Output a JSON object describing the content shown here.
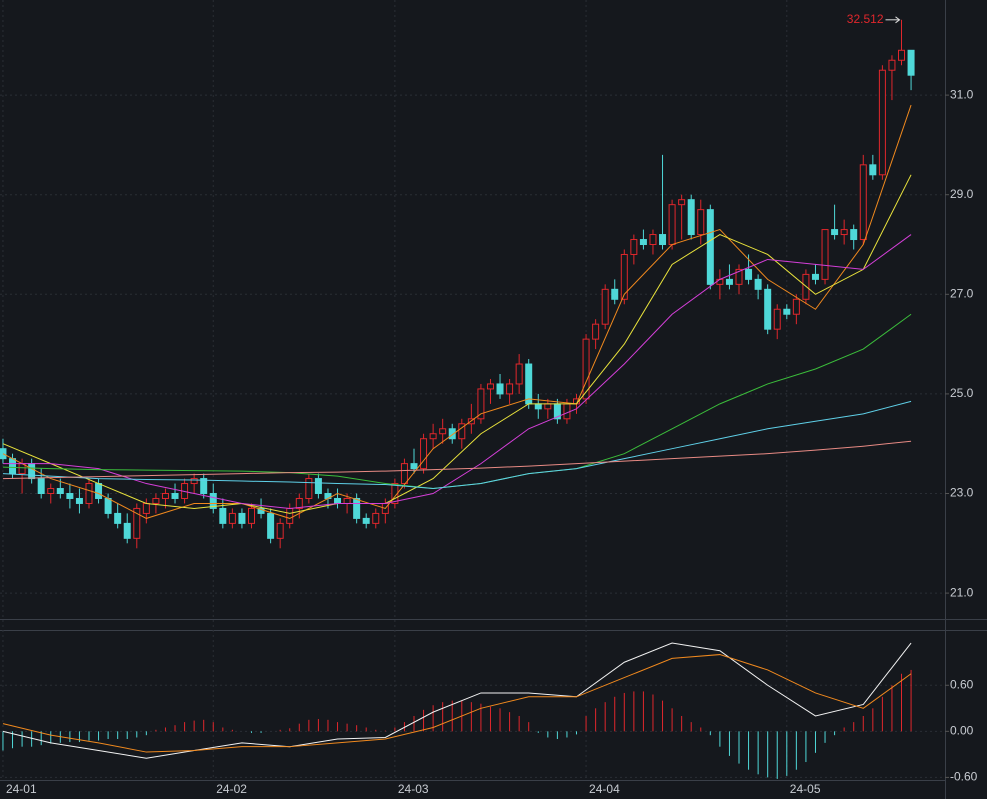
{
  "chart_data": [
    {
      "type": "candlestick",
      "up_color": "#e0272c",
      "down_color": "#4fd8d8",
      "ylim": [
        20.5,
        32.91
      ],
      "yticks": [
        {
          "value": 21,
          "label": "21.0"
        },
        {
          "value": 23,
          "label": "23.0"
        },
        {
          "value": 25,
          "label": "25.0"
        },
        {
          "value": 27,
          "label": "27.0"
        },
        {
          "value": 29,
          "label": "29.0"
        },
        {
          "value": 31,
          "label": "31.0"
        }
      ],
      "xlim": [
        -0.31,
        98.55
      ],
      "xticks": [
        {
          "value": 0,
          "label": "24-01"
        },
        {
          "value": 22,
          "label": "24-02"
        },
        {
          "value": 41,
          "label": "24-03"
        },
        {
          "value": 61,
          "label": "24-04"
        },
        {
          "value": 82,
          "label": "24-05"
        }
      ],
      "grid": true,
      "high_index": 94,
      "candles": [
        [
          23.9,
          24.1,
          23.6,
          23.7
        ],
        [
          23.7,
          23.8,
          23.3,
          23.4
        ],
        [
          23.4,
          23.7,
          23.0,
          23.6
        ],
        [
          23.6,
          23.7,
          23.2,
          23.3
        ],
        [
          23.3,
          23.5,
          22.9,
          23.0
        ],
        [
          23.0,
          23.2,
          22.8,
          23.1
        ],
        [
          23.1,
          23.3,
          22.9,
          23.0
        ],
        [
          23.0,
          23.2,
          22.7,
          22.9
        ],
        [
          22.9,
          23.1,
          22.6,
          22.8
        ],
        [
          22.8,
          23.3,
          22.7,
          23.2
        ],
        [
          23.2,
          23.3,
          22.8,
          22.9
        ],
        [
          22.9,
          23.0,
          22.5,
          22.6
        ],
        [
          22.6,
          22.8,
          22.3,
          22.4
        ],
        [
          22.4,
          22.6,
          22.0,
          22.1
        ],
        [
          22.1,
          22.8,
          21.9,
          22.7
        ],
        [
          22.6,
          22.9,
          22.4,
          22.8
        ],
        [
          22.8,
          23.0,
          22.6,
          22.9
        ],
        [
          22.9,
          23.1,
          22.7,
          23.0
        ],
        [
          23.0,
          23.2,
          22.8,
          22.9
        ],
        [
          22.9,
          23.3,
          22.8,
          23.2
        ],
        [
          23.2,
          23.4,
          23.0,
          23.3
        ],
        [
          23.3,
          23.4,
          22.9,
          23.0
        ],
        [
          23.0,
          23.2,
          22.6,
          22.7
        ],
        [
          22.7,
          22.9,
          22.3,
          22.4
        ],
        [
          22.4,
          22.7,
          22.3,
          22.6
        ],
        [
          22.6,
          22.7,
          22.3,
          22.4
        ],
        [
          22.4,
          22.8,
          22.3,
          22.7
        ],
        [
          22.7,
          22.9,
          22.5,
          22.6
        ],
        [
          22.6,
          22.7,
          22.0,
          22.1
        ],
        [
          22.1,
          22.5,
          21.9,
          22.4
        ],
        [
          22.4,
          22.8,
          22.3,
          22.7
        ],
        [
          22.7,
          23.0,
          22.5,
          22.9
        ],
        [
          22.9,
          23.4,
          22.8,
          23.3
        ],
        [
          23.3,
          23.4,
          22.9,
          23.0
        ],
        [
          23.0,
          23.1,
          22.7,
          22.9
        ],
        [
          22.9,
          23.1,
          22.7,
          22.8
        ],
        [
          22.8,
          23.0,
          22.6,
          22.9
        ],
        [
          22.9,
          23.0,
          22.4,
          22.5
        ],
        [
          22.5,
          22.6,
          22.3,
          22.4
        ],
        [
          22.4,
          22.7,
          22.3,
          22.6
        ],
        [
          22.6,
          22.9,
          22.4,
          22.8
        ],
        [
          22.8,
          23.3,
          22.7,
          23.2
        ],
        [
          23.2,
          23.7,
          23.1,
          23.6
        ],
        [
          23.6,
          23.9,
          23.4,
          23.5
        ],
        [
          23.5,
          24.2,
          23.4,
          24.1
        ],
        [
          24.1,
          24.4,
          23.9,
          24.2
        ],
        [
          24.2,
          24.5,
          24.0,
          24.3
        ],
        [
          24.3,
          24.4,
          24.0,
          24.1
        ],
        [
          24.1,
          24.5,
          23.9,
          24.4
        ],
        [
          24.4,
          24.8,
          24.2,
          24.5
        ],
        [
          24.5,
          25.2,
          24.4,
          25.1
        ],
        [
          25.1,
          25.3,
          24.8,
          25.2
        ],
        [
          25.2,
          25.4,
          24.9,
          25.0
        ],
        [
          25.0,
          25.3,
          24.8,
          25.2
        ],
        [
          25.2,
          25.8,
          25.0,
          25.6
        ],
        [
          25.6,
          25.7,
          24.7,
          24.8
        ],
        [
          24.8,
          25.0,
          24.5,
          24.7
        ],
        [
          24.7,
          24.9,
          24.5,
          24.8
        ],
        [
          24.8,
          24.9,
          24.4,
          24.5
        ],
        [
          24.5,
          24.9,
          24.4,
          24.8
        ],
        [
          24.8,
          25.0,
          24.6,
          24.9
        ],
        [
          24.9,
          26.2,
          24.8,
          26.1
        ],
        [
          26.1,
          26.5,
          25.9,
          26.4
        ],
        [
          26.4,
          27.2,
          26.3,
          27.1
        ],
        [
          27.1,
          27.3,
          26.8,
          26.9
        ],
        [
          26.9,
          27.9,
          26.8,
          27.8
        ],
        [
          27.8,
          28.2,
          27.6,
          28.1
        ],
        [
          28.1,
          28.3,
          27.9,
          28.0
        ],
        [
          28.0,
          28.3,
          27.8,
          28.2
        ],
        [
          28.2,
          29.8,
          27.9,
          28.0
        ],
        [
          28.0,
          28.9,
          27.9,
          28.8
        ],
        [
          28.8,
          29.0,
          28.1,
          28.9
        ],
        [
          28.9,
          29.0,
          28.1,
          28.2
        ],
        [
          28.2,
          28.9,
          28.0,
          28.7
        ],
        [
          28.7,
          28.8,
          27.1,
          27.2
        ],
        [
          27.2,
          27.5,
          26.9,
          27.3
        ],
        [
          27.3,
          27.6,
          27.1,
          27.2
        ],
        [
          27.2,
          27.6,
          27.0,
          27.5
        ],
        [
          27.5,
          27.8,
          27.2,
          27.3
        ],
        [
          27.3,
          27.4,
          26.9,
          27.1
        ],
        [
          27.1,
          27.2,
          26.2,
          26.3
        ],
        [
          26.3,
          26.8,
          26.1,
          26.7
        ],
        [
          26.7,
          26.8,
          26.5,
          26.6
        ],
        [
          26.6,
          27.0,
          26.4,
          26.9
        ],
        [
          26.9,
          27.5,
          26.8,
          27.4
        ],
        [
          27.4,
          27.6,
          27.2,
          27.3
        ],
        [
          27.3,
          28.3,
          27.2,
          28.3
        ],
        [
          28.3,
          28.8,
          28.1,
          28.2
        ],
        [
          28.2,
          28.5,
          28.0,
          28.3
        ],
        [
          28.3,
          28.4,
          27.9,
          28.1
        ],
        [
          28.1,
          29.8,
          28.0,
          29.6
        ],
        [
          29.6,
          29.8,
          29.3,
          29.4
        ],
        [
          29.4,
          31.6,
          29.3,
          31.5
        ],
        [
          31.5,
          31.8,
          30.9,
          31.7
        ],
        [
          31.7,
          32.512,
          31.6,
          31.9
        ],
        [
          31.9,
          31.9,
          31.1,
          31.4
        ]
      ],
      "ma_x": [
        0,
        5,
        10,
        15,
        20,
        25,
        30,
        35,
        40,
        45,
        50,
        55,
        60,
        65,
        70,
        75,
        80,
        85,
        90,
        95
      ],
      "ma": [
        {
          "color": "#f0891e",
          "values": [
            23.8,
            23.3,
            23.0,
            22.5,
            22.8,
            22.8,
            22.5,
            23.0,
            22.7,
            23.9,
            24.6,
            24.9,
            24.8,
            27.0,
            28.0,
            28.3,
            27.3,
            26.7,
            28.0,
            30.8
          ]
        },
        {
          "color": "#e8e23c",
          "values": [
            24.0,
            23.6,
            23.2,
            22.8,
            22.7,
            22.8,
            22.6,
            22.8,
            22.8,
            23.3,
            24.2,
            24.8,
            24.8,
            26.0,
            27.6,
            28.2,
            27.8,
            27.0,
            27.5,
            29.4
          ]
        },
        {
          "color": "#d43fd8",
          "values": [
            23.6,
            23.6,
            23.5,
            23.2,
            23.0,
            22.8,
            22.7,
            22.8,
            22.8,
            23.0,
            23.6,
            24.3,
            24.7,
            25.6,
            26.6,
            27.3,
            27.7,
            27.6,
            27.5,
            28.2
          ]
        },
        {
          "color": "#3bbd3b",
          "values": [
            23.53,
            23.5,
            23.48,
            23.47,
            23.46,
            23.45,
            23.42,
            23.35,
            23.2,
            23.1,
            23.2,
            23.4,
            23.5,
            23.8,
            24.3,
            24.8,
            25.2,
            25.5,
            25.9,
            26.6
          ]
        },
        {
          "color": "#5fd0e8",
          "values": [
            23.4,
            23.35,
            23.3,
            23.28,
            23.27,
            23.25,
            23.23,
            23.2,
            23.18,
            23.1,
            23.2,
            23.4,
            23.5,
            23.7,
            23.9,
            24.1,
            24.3,
            24.45,
            24.6,
            24.85
          ]
        },
        {
          "color": "#e88a84",
          "values": [
            23.3,
            23.32,
            23.34,
            23.36,
            23.38,
            23.4,
            23.42,
            23.43,
            23.45,
            23.48,
            23.51,
            23.55,
            23.6,
            23.65,
            23.7,
            23.75,
            23.8,
            23.87,
            23.95,
            24.05
          ]
        }
      ]
    },
    {
      "type": "macd",
      "ylim": [
        -0.66,
        1.32
      ],
      "yticks": [
        {
          "value": -0.6,
          "label": "-0.60"
        },
        {
          "value": 0,
          "label": "0.00"
        },
        {
          "value": 0.6,
          "label": "0.60"
        }
      ],
      "x": [
        0,
        5,
        10,
        15,
        20,
        25,
        30,
        35,
        40,
        45,
        50,
        55,
        60,
        65,
        70,
        75,
        80,
        85,
        90,
        95
      ],
      "dif": {
        "color": "#f2f2f2",
        "values": [
          0.0,
          -0.15,
          -0.25,
          -0.35,
          -0.25,
          -0.15,
          -0.2,
          -0.1,
          -0.08,
          0.25,
          0.5,
          0.5,
          0.45,
          0.9,
          1.15,
          1.05,
          0.6,
          0.2,
          0.35,
          1.15
        ]
      },
      "dea": {
        "color": "#f0891e",
        "values": [
          0.1,
          -0.05,
          -0.15,
          -0.27,
          -0.25,
          -0.2,
          -0.2,
          -0.15,
          -0.1,
          0.05,
          0.3,
          0.45,
          0.45,
          0.7,
          0.95,
          1.0,
          0.8,
          0.5,
          0.3,
          0.75
        ]
      },
      "up_color": "#e0272c",
      "down_color": "#4fd8d8",
      "hist": [
        -0.25,
        -0.22,
        -0.2,
        -0.2,
        -0.18,
        -0.16,
        -0.15,
        -0.14,
        -0.14,
        -0.12,
        -0.12,
        -0.1,
        -0.1,
        -0.1,
        -0.08,
        -0.05,
        0.02,
        0.05,
        0.08,
        0.12,
        0.14,
        0.15,
        0.12,
        0.05,
        0.02,
        0,
        -0.02,
        -0.02,
        0,
        0.02,
        0.04,
        0.1,
        0.15,
        0.16,
        0.15,
        0.12,
        0.1,
        0.08,
        0.05,
        0.02,
        0.01,
        0.05,
        0.12,
        0.2,
        0.28,
        0.34,
        0.38,
        0.4,
        0.4,
        0.38,
        0.36,
        0.32,
        0.3,
        0.25,
        0.2,
        0.12,
        -0.02,
        -0.08,
        -0.1,
        -0.08,
        -0.04,
        0.2,
        0.3,
        0.38,
        0.45,
        0.5,
        0.52,
        0.52,
        0.48,
        0.4,
        0.3,
        0.2,
        0.12,
        0.05,
        -0.05,
        -0.2,
        -0.32,
        -0.42,
        -0.5,
        -0.56,
        -0.6,
        -0.62,
        -0.58,
        -0.5,
        -0.4,
        -0.28,
        -0.15,
        -0.05,
        0.05,
        0.12,
        0.2,
        0.3,
        0.45,
        0.6,
        0.75,
        0.8
      ]
    }
  ]
}
